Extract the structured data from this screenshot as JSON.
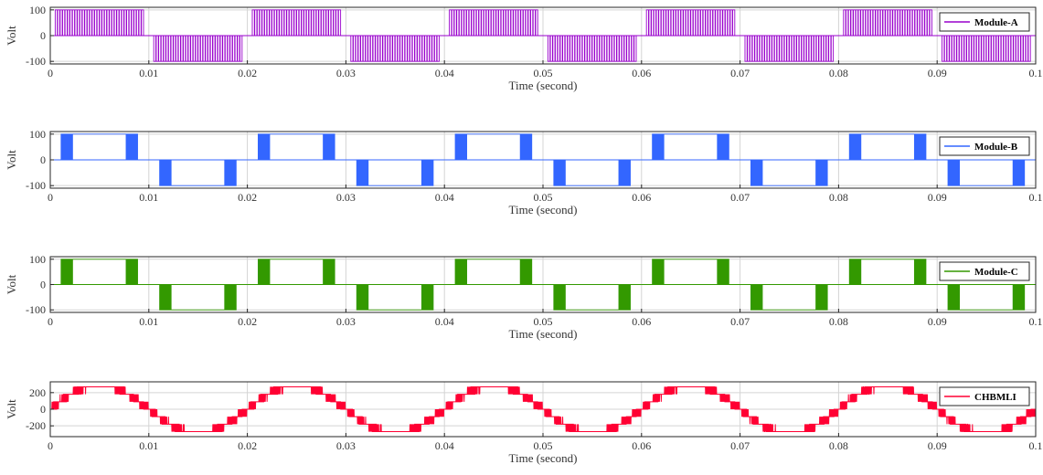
{
  "chart_data": [
    {
      "type": "line",
      "legend": "Module-A",
      "legend_position": "right",
      "color": "#9900cc",
      "xlabel": "Time (second)",
      "ylabel": "Volt",
      "xlim": [
        0,
        0.1
      ],
      "ylim": [
        -110,
        110
      ],
      "yticks": [
        -100,
        0,
        100
      ],
      "ytick_labels": [
        "-100",
        "0",
        "100"
      ],
      "xticks": [
        0,
        0.01,
        0.02,
        0.03,
        0.04,
        0.05,
        0.06,
        0.07,
        0.08,
        0.09,
        0.1
      ],
      "xtick_labels": [
        "0",
        "0.01",
        "0.02",
        "0.03",
        "0.04",
        "0.05",
        "0.06",
        "0.07",
        "0.08",
        "0.09",
        "0.1"
      ],
      "grid": true,
      "waveform": "quasi-square PWM, +100 V for 0-0.01 s, -100 V for 0.01-0.02 s, repeating at 50 Hz",
      "amplitude": 100,
      "period": 0.02,
      "pulses_on": [
        [
          0.0005,
          0.0095
        ]
      ]
    },
    {
      "type": "line",
      "legend": "Module-B",
      "legend_position": "right",
      "color": "#3366ff",
      "xlabel": "Time (second)",
      "ylabel": "Volt",
      "xlim": [
        0,
        0.1
      ],
      "ylim": [
        -110,
        110
      ],
      "yticks": [
        -100,
        0,
        100
      ],
      "ytick_labels": [
        "-100",
        "0",
        "100"
      ],
      "xticks": [
        0,
        0.01,
        0.02,
        0.03,
        0.04,
        0.05,
        0.06,
        0.07,
        0.08,
        0.09,
        0.1
      ],
      "xtick_labels": [
        "0",
        "0.01",
        "0.02",
        "0.03",
        "0.04",
        "0.05",
        "0.06",
        "0.07",
        "0.08",
        "0.09",
        "0.1"
      ],
      "grid": true,
      "waveform": "PWM bursts 0.0011-0.0023 s and 0.0077-0.0089 s, steady 100 V between, mirrored negative in second half-cycle",
      "amplitude": 100,
      "period": 0.02,
      "pulses_on": [
        [
          0.0011,
          0.0023
        ],
        [
          0.0077,
          0.0089
        ]
      ],
      "steady_on": [
        0.0023,
        0.0077
      ]
    },
    {
      "type": "line",
      "legend": "Module-C",
      "legend_position": "right",
      "color": "#339900",
      "xlabel": "Time (second)",
      "ylabel": "Volt",
      "xlim": [
        0,
        0.1
      ],
      "ylim": [
        -110,
        110
      ],
      "yticks": [
        -100,
        0,
        100
      ],
      "ytick_labels": [
        "-100",
        "0",
        "100"
      ],
      "xticks": [
        0,
        0.01,
        0.02,
        0.03,
        0.04,
        0.05,
        0.06,
        0.07,
        0.08,
        0.09,
        0.1
      ],
      "xtick_labels": [
        "0",
        "0.01",
        "0.02",
        "0.03",
        "0.04",
        "0.05",
        "0.06",
        "0.07",
        "0.08",
        "0.09",
        "0.1"
      ],
      "grid": true,
      "waveform": "PWM bursts 0.0011-0.0023 s and 0.0077-0.0089 s, steady 100 V between, mirrored negative in second half-cycle",
      "amplitude": 100,
      "period": 0.02,
      "pulses_on": [
        [
          0.0011,
          0.0023
        ],
        [
          0.0077,
          0.0089
        ]
      ],
      "steady_on": [
        0.0023,
        0.0077
      ]
    },
    {
      "type": "line",
      "legend": "CHBMLI",
      "legend_position": "right",
      "color": "#ff0033",
      "xlabel": "Time (second)",
      "ylabel": "Volt",
      "xlim": [
        0,
        0.1
      ],
      "ylim": [
        -330,
        330
      ],
      "yticks": [
        -200,
        0,
        200
      ],
      "ytick_labels": [
        "-200",
        "0",
        "200"
      ],
      "xticks": [
        0,
        0.01,
        0.02,
        0.03,
        0.04,
        0.05,
        0.06,
        0.07,
        0.08,
        0.09,
        0.1
      ],
      "xtick_labels": [
        "0",
        "0.01",
        "0.02",
        "0.03",
        "0.04",
        "0.05",
        "0.06",
        "0.07",
        "0.08",
        "0.09",
        "0.1"
      ],
      "grid": true,
      "waveform": "multilevel stepped sinusoid, peak about 270 V, 50 Hz",
      "amplitude": 270,
      "period": 0.02,
      "frequency_hz": 50
    }
  ]
}
